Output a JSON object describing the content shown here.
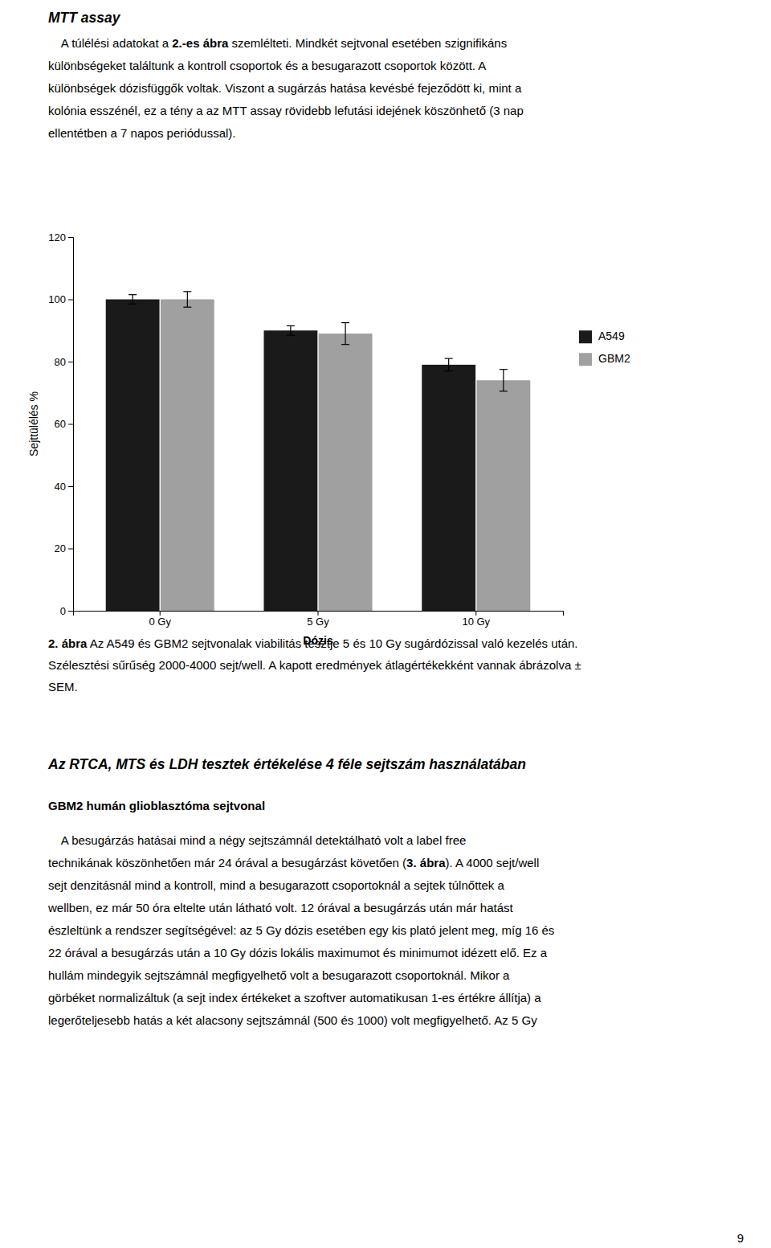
{
  "page": {
    "heading": "MTT assay",
    "paragraph1": [
      [
        "    A túlélési adatokat a ",
        "2.-es ábra",
        " szemlélteti. Mindkét sejtvonal esetében szignifikáns"
      ],
      [
        "különbségeket találtunk a kontroll csoportok és a besugarazott csoportok között. A"
      ],
      [
        "különbségek dózisfüggők voltak. Viszont a sugárzás hatása kevésbé fejeződött ki, mint a"
      ],
      [
        "kolónia esszénél, ez a tény a az MTT assay rövidebb lefutási idejének köszönhető (3 nap"
      ],
      [
        "ellentétben a 7 napos periódussal)."
      ]
    ],
    "caption": {
      "label": "2. ábra",
      "lines": [
        " Az A549 és GBM2 sejtvonalak viabilitás tesztje 5 és 10 Gy sugárdózissal való kezelés után.",
        "Szélesztési sűrűség 2000-4000 sejt/well. A kapott eredmények átlagértékekként vannak ábrázolva ±",
        "SEM."
      ]
    },
    "section_heading": "Az RTCA, MTS és LDH tesztek értékelése 4 féle sejtszám használatában",
    "subheading": "GBM2 humán glioblasztóma sejtvonal",
    "paragraph2": [
      [
        "    A besugárzás hatásai mind a négy sejtszámnál detektálható volt a label free"
      ],
      [
        "technikának köszönhetően már 24 órával a besugárzást követően (",
        "3. ábra",
        "). A 4000 sejt/well"
      ],
      [
        "sejt denzitásnál mind a kontroll, mind a besugarazott csoportoknál a sejtek túlnőttek a"
      ],
      [
        "wellben, ez már 50 óra eltelte után látható volt. 12 órával a besugárzás után már hatást"
      ],
      [
        "észleltünk a rendszer segítségével: az 5 Gy dózis esetében egy kis plató jelent meg, míg 16 és"
      ],
      [
        "22 órával a besugárzás után a 10 Gy dózis lokális maximumot és minimumot idézett elő. Ez a"
      ],
      [
        "hullám mindegyik sejtszámnál megfigyelhető volt a besugarazott csoportoknál. Mikor a"
      ],
      [
        "görbéket normalizáltuk (a sejt index értékeket a szoftver automatikusan 1-es értékre állítja) a"
      ],
      [
        "legerőteljesebb hatás a két alacsony sejtszámnál (500 és 1000) volt megfigyelhető. Az 5 Gy"
      ]
    ],
    "page_number": 9
  },
  "chart_data": {
    "type": "bar",
    "categories": [
      "0 Gy",
      "5 Gy",
      "10 Gy"
    ],
    "series": [
      {
        "name": "A549",
        "color": "#1a1a1a",
        "values": [
          100,
          90,
          79
        ],
        "errors": [
          1.5,
          1.5,
          2.0
        ]
      },
      {
        "name": "GBM2",
        "color": "#a0a0a0",
        "values": [
          100,
          89,
          74
        ],
        "errors": [
          2.5,
          3.5,
          3.5
        ]
      }
    ],
    "xlabel": "Dózis",
    "ylabel": "Sejttülélés %",
    "ylim": [
      0,
      120
    ],
    "yticks": [
      0,
      20,
      40,
      60,
      80,
      100,
      120
    ],
    "grid": false,
    "legend": "right"
  }
}
